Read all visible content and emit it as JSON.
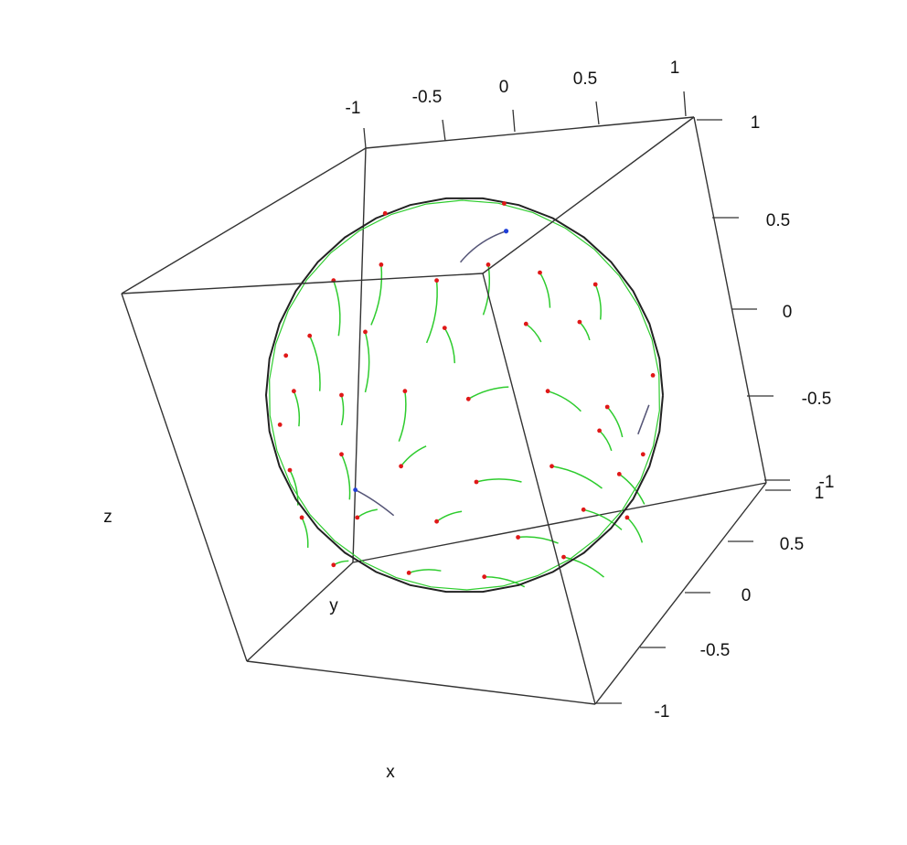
{
  "chart_data": {
    "type": "scatter",
    "projection": "3d-perspective",
    "surface": "unit-sphere",
    "x_axis": {
      "label": "x",
      "range": [
        -1,
        1
      ],
      "ticks": [
        "-1",
        "-0.5",
        "0",
        "0.5",
        "1"
      ]
    },
    "y_axis": {
      "label": "y",
      "range": [
        -1,
        1
      ],
      "ticks": [
        "-1",
        "-0.5",
        "0",
        "0.5",
        "1"
      ]
    },
    "z_axis": {
      "label": "z",
      "range": [
        -1,
        1
      ],
      "ticks": [
        "-1",
        "-0.5",
        "0",
        "0.5",
        "1"
      ]
    },
    "grid": false,
    "box": true,
    "legend": "none",
    "colors": {
      "box": "#333333",
      "outline": "#222222",
      "trail": "#2ecc2e",
      "point": "#e01818",
      "highlight_point": "#1f3fd8",
      "dark_trail": "#555577"
    },
    "points_on_sphere": [
      {
        "dir": [
          -0.66,
          0.58
        ],
        "trail": [
          0.05,
          0.55
        ]
      },
      {
        "dir": [
          -0.42,
          0.66
        ],
        "trail": [
          -0.1,
          0.6
        ]
      },
      {
        "dir": [
          -0.14,
          0.58
        ],
        "trail": [
          -0.1,
          0.62
        ]
      },
      {
        "dir": [
          0.12,
          0.66
        ],
        "trail": [
          -0.05,
          0.5
        ]
      },
      {
        "dir": [
          0.38,
          0.62
        ],
        "trail": [
          0.1,
          0.35
        ]
      },
      {
        "dir": [
          0.66,
          0.56
        ],
        "trail": [
          0.05,
          0.35
        ]
      },
      {
        "dir": [
          -0.78,
          0.3
        ],
        "trail": [
          0.1,
          0.55
        ]
      },
      {
        "dir": [
          -0.5,
          0.32
        ],
        "trail": [
          0.0,
          0.6
        ]
      },
      {
        "dir": [
          -0.1,
          0.34
        ],
        "trail": [
          0.1,
          0.35
        ]
      },
      {
        "dir": [
          0.31,
          0.36
        ],
        "trail": [
          0.15,
          0.18
        ]
      },
      {
        "dir": [
          0.58,
          0.37
        ],
        "trail": [
          0.1,
          0.18
        ]
      },
      {
        "dir": [
          -0.86,
          0.02
        ],
        "trail": [
          0.05,
          0.35
        ]
      },
      {
        "dir": [
          -0.62,
          0.0
        ],
        "trail": [
          0.0,
          0.3
        ]
      },
      {
        "dir": [
          -0.3,
          0.02
        ],
        "trail": [
          -0.06,
          0.5
        ]
      },
      {
        "dir": [
          0.02,
          -0.02
        ],
        "trail": [
          0.4,
          -0.12
        ]
      },
      {
        "dir": [
          0.42,
          0.02
        ],
        "trail": [
          0.33,
          0.2
        ]
      },
      {
        "dir": [
          0.72,
          -0.06
        ],
        "trail": [
          0.15,
          0.3
        ]
      },
      {
        "dir": [
          -0.88,
          -0.38
        ],
        "trail": [
          0.08,
          0.35
        ]
      },
      {
        "dir": [
          -0.62,
          -0.3
        ],
        "trail": [
          0.08,
          0.45
        ]
      },
      {
        "dir": [
          -0.32,
          -0.36
        ],
        "trail": [
          0.25,
          -0.2
        ]
      },
      {
        "dir": [
          0.06,
          -0.44
        ],
        "trail": [
          0.45,
          0.0
        ]
      },
      {
        "dir": [
          0.44,
          -0.36
        ],
        "trail": [
          0.5,
          0.22
        ]
      },
      {
        "dir": [
          0.78,
          -0.4
        ],
        "trail": [
          0.25,
          0.3
        ]
      },
      {
        "dir": [
          -0.82,
          -0.62
        ],
        "trail": [
          0.06,
          0.3
        ]
      },
      {
        "dir": [
          -0.54,
          -0.62
        ],
        "trail": [
          0.2,
          -0.08
        ]
      },
      {
        "dir": [
          -0.14,
          -0.64
        ],
        "trail": [
          0.25,
          -0.1
        ]
      },
      {
        "dir": [
          0.27,
          -0.72
        ],
        "trail": [
          0.4,
          0.06
        ]
      },
      {
        "dir": [
          0.6,
          -0.58
        ],
        "trail": [
          0.38,
          0.2
        ]
      },
      {
        "dir": [
          -0.66,
          -0.86
        ],
        "trail": [
          0.15,
          -0.04
        ]
      },
      {
        "dir": [
          -0.28,
          -0.9
        ],
        "trail": [
          0.32,
          -0.02
        ]
      },
      {
        "dir": [
          0.1,
          -0.92
        ],
        "trail": [
          0.4,
          0.1
        ]
      },
      {
        "dir": [
          0.5,
          -0.82
        ],
        "trail": [
          0.4,
          0.2
        ]
      },
      {
        "dir": [
          0.82,
          -0.62
        ],
        "trail": [
          0.15,
          0.25
        ]
      },
      {
        "dir": [
          0.68,
          -0.18
        ],
        "trail": [
          0.12,
          0.2
        ]
      }
    ]
  }
}
